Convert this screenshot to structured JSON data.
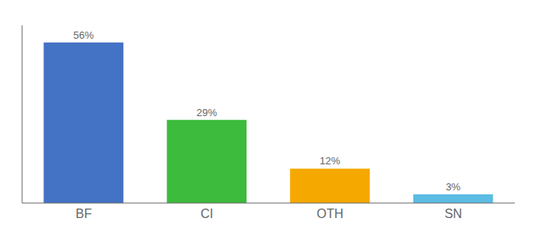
{
  "chart_data": {
    "type": "bar",
    "categories": [
      "BF",
      "CI",
      "OTH",
      "SN"
    ],
    "values": [
      56,
      29,
      12,
      3
    ],
    "value_labels": [
      "56%",
      "29%",
      "12%",
      "3%"
    ],
    "colors": [
      "#4472c4",
      "#3dbb3d",
      "#f5a800",
      "#5bbde4"
    ],
    "ylim": [
      0,
      62
    ],
    "grid": false,
    "data_labels": true,
    "tick_labels": "x"
  }
}
